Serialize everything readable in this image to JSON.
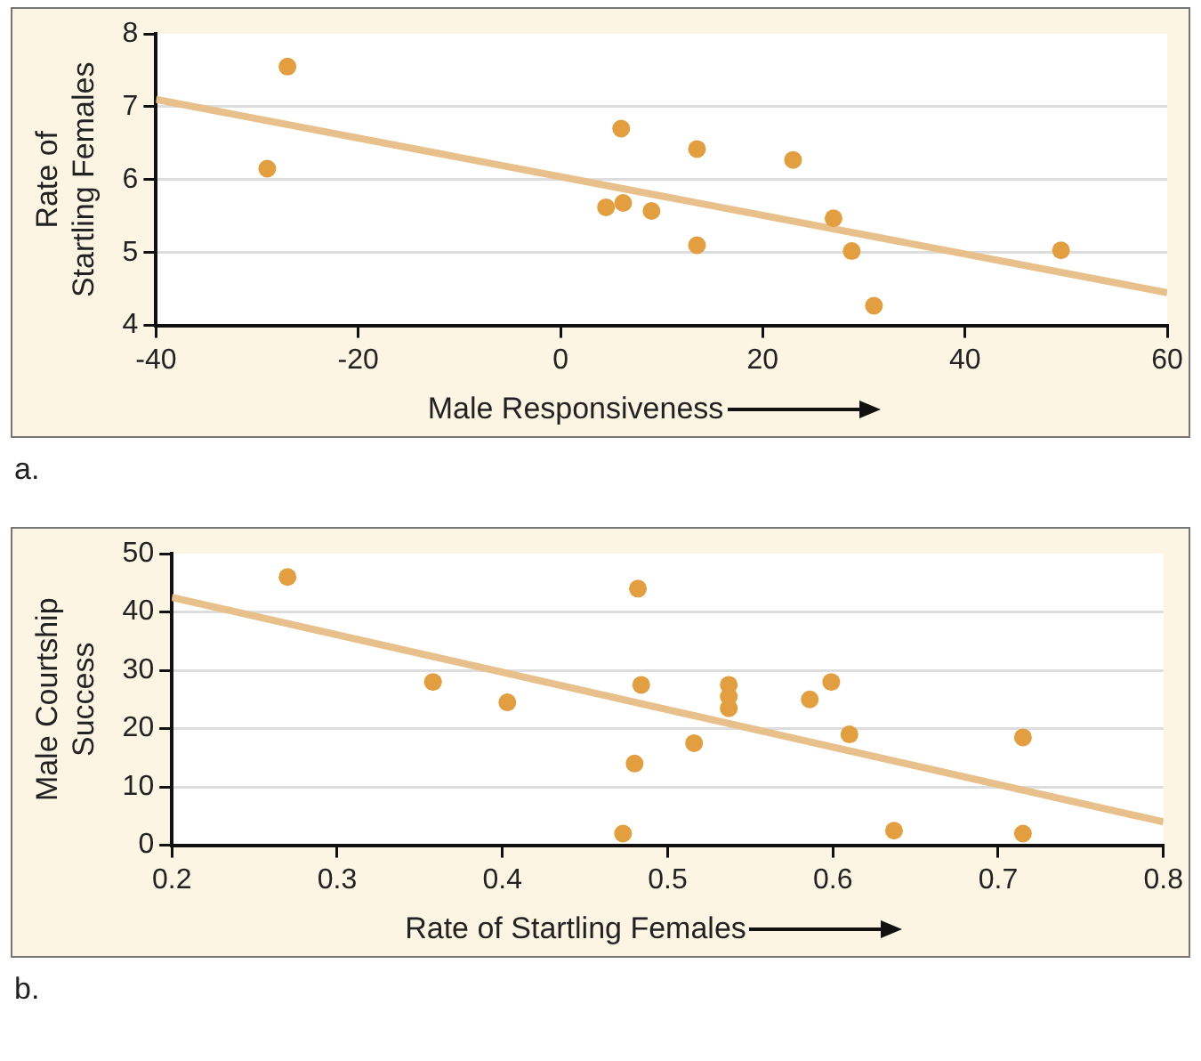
{
  "chart_data": [
    {
      "type": "scatter",
      "xlabel": "Male Responsiveness",
      "ylabel": "Rate of\nStartling Females",
      "xlim": [
        -40,
        60
      ],
      "ylim": [
        4,
        8
      ],
      "xticks": [
        -40,
        -20,
        0,
        20,
        40,
        60
      ],
      "yticks": [
        4,
        5,
        6,
        7,
        8
      ],
      "grid": "y",
      "annotations": [
        "a."
      ],
      "series": [
        {
          "marker": "circle",
          "color": "#e39f3f",
          "x": [
            -29,
            -27,
            4.5,
            6,
            6.2,
            9,
            13.5,
            13.5,
            23,
            27,
            28.8,
            31,
            49.5
          ],
          "values": [
            6.15,
            7.55,
            5.62,
            6.7,
            5.68,
            5.57,
            6.42,
            5.1,
            6.27,
            5.47,
            5.02,
            4.27,
            5.03
          ]
        },
        {
          "type": "line",
          "marker": "none",
          "color": "#e8c08b",
          "x": [
            -40,
            60
          ],
          "values": [
            7.1,
            4.45
          ]
        }
      ]
    },
    {
      "type": "scatter",
      "xlabel": "Rate of Startling Females",
      "ylabel": "Male Courtship\nSuccess",
      "xlim": [
        0.2,
        0.8
      ],
      "ylim": [
        0,
        50
      ],
      "xticks": [
        0.2,
        0.3,
        0.4,
        0.5,
        0.6,
        0.7,
        0.8
      ],
      "yticks": [
        0,
        10,
        20,
        30,
        40,
        50
      ],
      "grid": "y",
      "annotations": [
        "b."
      ],
      "series": [
        {
          "marker": "circle",
          "color": "#e39f3f",
          "x": [
            0.27,
            0.358,
            0.403,
            0.473,
            0.48,
            0.482,
            0.484,
            0.516,
            0.537,
            0.537,
            0.537,
            0.586,
            0.599,
            0.61,
            0.637,
            0.715,
            0.715
          ],
          "values": [
            46,
            28,
            24.5,
            2,
            14,
            44,
            27.5,
            17.5,
            27.5,
            25.5,
            23.5,
            25,
            28,
            19,
            2.5,
            18.5,
            2
          ]
        },
        {
          "type": "line",
          "marker": "none",
          "color": "#e8c08b",
          "x": [
            0.2,
            0.8
          ],
          "values": [
            42.5,
            4
          ]
        }
      ]
    }
  ]
}
